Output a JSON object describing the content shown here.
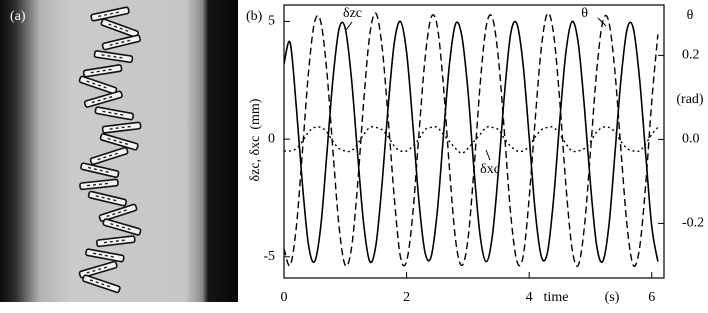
{
  "panel_a": {
    "label": "(a)"
  },
  "chart_data": {
    "type": "line",
    "panel_label": "(b)",
    "ylabel": "δzc, δxc",
    "ylabel_unit": "(mm)",
    "y2label": "θ",
    "y2label_unit": "(rad)",
    "xlabel": "time",
    "xlabel_unit": "(s)",
    "x": [
      0,
      0.1,
      0.2,
      0.3,
      0.4,
      0.5,
      0.6,
      0.7,
      0.8,
      0.9,
      1,
      1.1,
      1.2,
      1.3,
      1.4,
      1.5,
      1.6,
      1.7,
      1.8,
      1.9,
      2,
      2.1,
      2.2,
      2.3,
      2.4,
      2.5,
      2.6,
      2.7,
      2.8,
      2.9,
      3,
      3.1,
      3.2,
      3.3,
      3.4,
      3.5,
      3.6,
      3.7,
      3.8,
      3.9,
      4,
      4.1,
      4.2,
      4.3,
      4.4,
      4.5,
      4.6,
      4.7,
      4.8,
      4.9,
      5,
      5.1,
      5.2,
      5.3,
      5.4,
      5.5,
      5.6,
      5.7,
      5.8,
      5.9,
      6,
      6.1
    ],
    "series": [
      {
        "name": "δzc",
        "color": "#000000",
        "style": "solid",
        "values": [
          3.2,
          4.1,
          1.4,
          -1.9,
          -4.5,
          -5.2,
          -3.7,
          -0.6,
          2.6,
          4.7,
          4.7,
          2.6,
          -0.6,
          -3.6,
          -5.2,
          -4.5,
          -1.9,
          1.4,
          4.1,
          5.0,
          3.7,
          0.7,
          -2.6,
          -4.8,
          -5.0,
          -3.1,
          0.1,
          3.2,
          4.9,
          4.4,
          2.1,
          -1.3,
          -4.1,
          -5.2,
          -4.1,
          -1.3,
          2.0,
          4.5,
          4.9,
          3.2,
          0.1,
          -3.1,
          -5.0,
          -4.8,
          -2.5,
          0.8,
          3.7,
          5.0,
          4.1,
          1.4,
          -1.9,
          -4.5,
          -5.2,
          -3.7,
          -0.6,
          2.6,
          4.7,
          4.7,
          2.6,
          -0.6,
          -3.7,
          -5.2
        ]
      },
      {
        "name": "δxc",
        "color": "#000000",
        "style": "dotted",
        "values": [
          -0.5,
          -0.5,
          -0.4,
          -0.1,
          0.3,
          0.5,
          0.5,
          0.3,
          -0.1,
          -0.4,
          -0.5,
          -0.5,
          -0.2,
          0.2,
          0.5,
          0.5,
          0.4,
          0.1,
          -0.3,
          -0.5,
          -0.5,
          -0.3,
          0.0,
          0.4,
          0.5,
          0.5,
          0.2,
          -0.1,
          -0.4,
          -0.6,
          -0.4,
          -0.1,
          0.2,
          0.5,
          0.5,
          0.4,
          0.0,
          -0.3,
          -0.5,
          -0.5,
          -0.3,
          0.1,
          0.4,
          0.5,
          0.5,
          0.2,
          -0.2,
          -0.5,
          -0.5,
          -0.4,
          -0.1,
          0.3,
          0.5,
          0.5,
          0.3,
          -0.1,
          -0.4,
          -0.5,
          -0.5,
          -0.2,
          0.2,
          0.5
        ]
      },
      {
        "name": "θ",
        "color": "#000000",
        "style": "dashed",
        "axis": "y2",
        "values": [
          -0.26,
          -0.3,
          -0.21,
          -0.03,
          0.16,
          0.28,
          0.28,
          0.16,
          -0.03,
          -0.21,
          -0.3,
          -0.26,
          -0.11,
          0.09,
          0.25,
          0.3,
          0.22,
          0.05,
          -0.14,
          -0.28,
          -0.29,
          -0.18,
          0.01,
          0.19,
          0.29,
          0.27,
          0.13,
          -0.07,
          -0.24,
          -0.3,
          -0.24,
          -0.07,
          0.13,
          0.27,
          0.29,
          0.19,
          0.01,
          -0.18,
          -0.29,
          -0.28,
          -0.14,
          0.05,
          0.22,
          0.3,
          0.25,
          0.09,
          -0.11,
          -0.26,
          -0.3,
          -0.21,
          -0.03,
          0.16,
          0.28,
          0.28,
          0.16,
          -0.03,
          -0.21,
          -0.3,
          -0.26,
          -0.11,
          0.09,
          0.25
        ]
      }
    ],
    "xlim": [
      0,
      6.2
    ],
    "xticks": [
      0,
      2,
      4,
      6
    ],
    "ylim": [
      -5.9,
      5.7
    ],
    "yticks": [
      -5,
      0,
      5
    ],
    "y2lim": [
      -0.33,
      0.32
    ],
    "y2ticks": [
      -0.2,
      {
        "value": 0,
        "label": "0.0"
      },
      0.2
    ],
    "grid": false
  }
}
